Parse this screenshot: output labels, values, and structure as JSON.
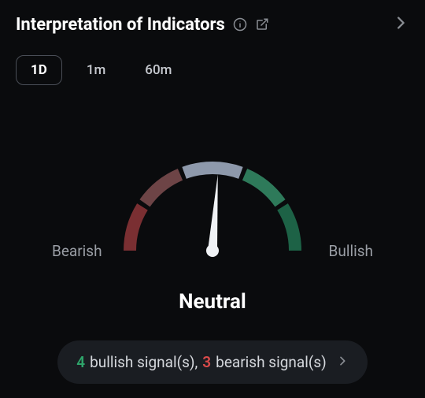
{
  "header": {
    "title": "Interpretation of Indicators"
  },
  "tabs": [
    {
      "label": "1D",
      "active": true
    },
    {
      "label": "1m",
      "active": false
    },
    {
      "label": "60m",
      "active": false
    }
  ],
  "gauge": {
    "type": "gauge",
    "segments": [
      {
        "start_deg": 180,
        "end_deg": 148,
        "color": "#7a2f32"
      },
      {
        "start_deg": 145,
        "end_deg": 113,
        "color": "#6d4446"
      },
      {
        "start_deg": 110,
        "end_deg": 70,
        "color": "#8e99ab"
      },
      {
        "start_deg": 67,
        "end_deg": 35,
        "color": "#2e7a5a"
      },
      {
        "start_deg": 32,
        "end_deg": 0,
        "color": "#1d6246"
      }
    ],
    "stroke_width": 16,
    "radius": 105,
    "needle_angle_deg": 86,
    "needle_color": "#f0f2f5",
    "label_left": "Bearish",
    "label_right": "Bullish",
    "result_label": "Neutral"
  },
  "signals": {
    "bullish_count": "4",
    "bullish_text": " bullish signal(s), ",
    "bearish_count": "3",
    "bearish_text": " bearish signal(s)",
    "bullish_color": "#2ea36a",
    "bearish_color": "#d84a4a"
  }
}
